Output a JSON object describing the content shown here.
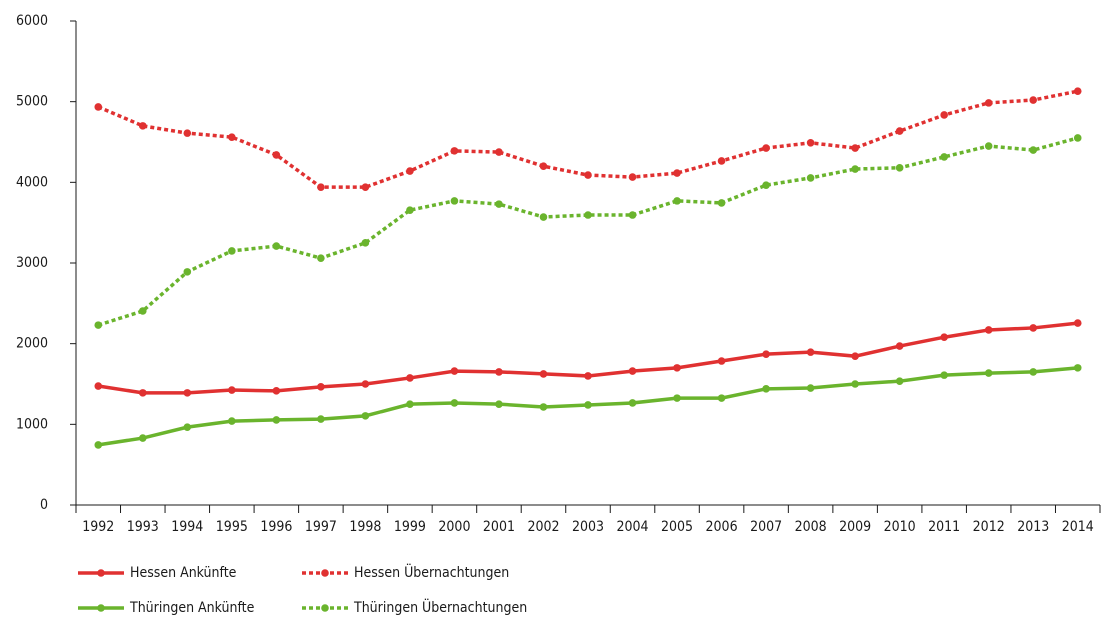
{
  "chart_data": {
    "type": "line",
    "categories": [
      "1992",
      "1993",
      "1994",
      "1995",
      "1996",
      "1997",
      "1998",
      "1999",
      "2000",
      "2001",
      "2002",
      "2003",
      "2004",
      "2005",
      "2006",
      "2007",
      "2008",
      "2009",
      "2010",
      "2011",
      "2012",
      "2013",
      "2014"
    ],
    "ylim": [
      0,
      6000
    ],
    "yticks": [
      0,
      1000,
      2000,
      3000,
      4000,
      5000,
      6000
    ],
    "series": [
      {
        "name": "Hessen Ankünfte",
        "color": "#e03131",
        "style": "solid",
        "values": [
          1475,
          1390,
          1390,
          1425,
          1415,
          1465,
          1500,
          1575,
          1660,
          1650,
          1625,
          1600,
          1660,
          1700,
          1785,
          1870,
          1895,
          1845,
          1970,
          2080,
          2170,
          2195,
          2255
        ]
      },
      {
        "name": "Hessen Übernachtungen",
        "color": "#e03131",
        "style": "dotted",
        "values": [
          4935,
          4700,
          4610,
          4560,
          4340,
          3940,
          3940,
          4140,
          4390,
          4375,
          4200,
          4090,
          4065,
          4115,
          4265,
          4425,
          4490,
          4425,
          4635,
          4835,
          4985,
          5020,
          5130
        ]
      },
      {
        "name": "Thüringen Ankünfte",
        "color": "#6ab42d",
        "style": "solid",
        "values": [
          745,
          830,
          965,
          1040,
          1055,
          1065,
          1105,
          1250,
          1265,
          1250,
          1215,
          1240,
          1265,
          1325,
          1325,
          1440,
          1450,
          1500,
          1535,
          1610,
          1635,
          1650,
          1700
        ]
      },
      {
        "name": "Thüringen Übernachtungen",
        "color": "#6ab42d",
        "style": "dotted",
        "values": [
          2230,
          2405,
          2890,
          3150,
          3210,
          3060,
          3250,
          3655,
          3770,
          3730,
          3570,
          3595,
          3595,
          3770,
          3745,
          3965,
          4055,
          4165,
          4180,
          4315,
          4450,
          4400,
          4550
        ]
      }
    ]
  }
}
